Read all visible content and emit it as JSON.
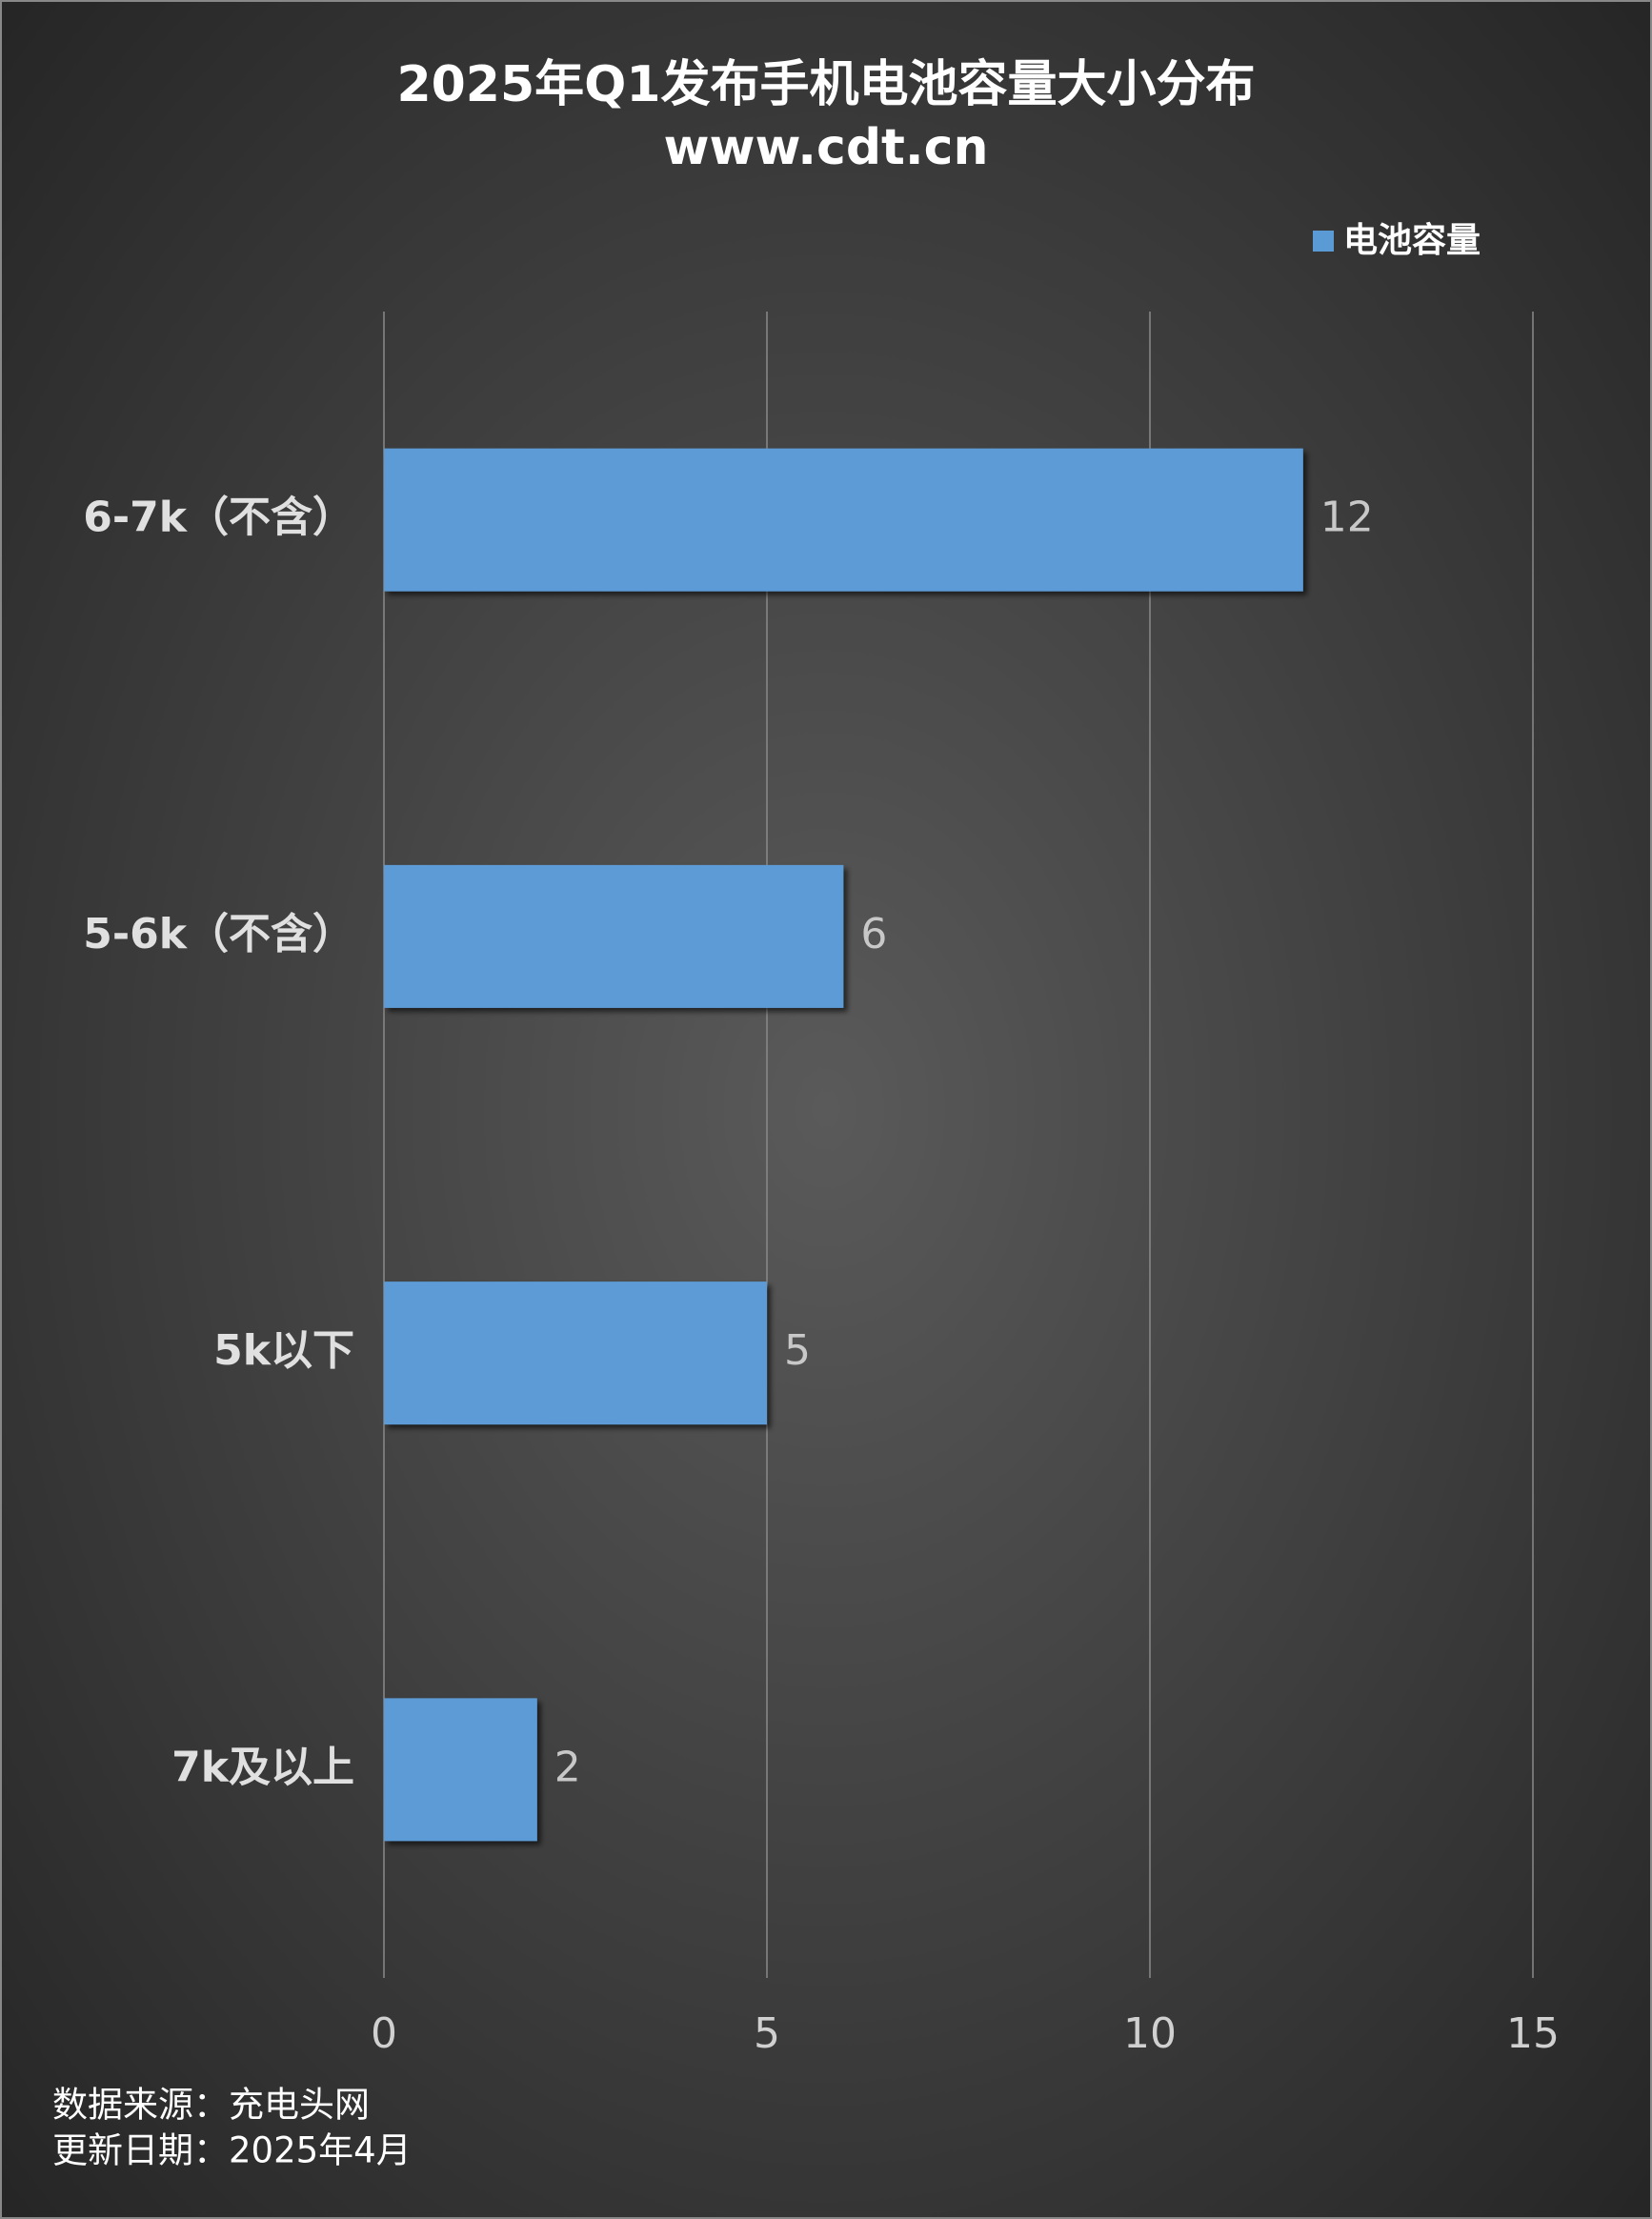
{
  "chart_data": {
    "type": "bar",
    "orientation": "horizontal",
    "title": "2025年Q1发布手机电池容量大小分布",
    "subtitle": "www.cdt.cn",
    "categories": [
      "6-7k（不含）",
      "5-6k（不含）",
      "5k以下",
      "7k及以上"
    ],
    "series": [
      {
        "name": "电池容量",
        "color": "#5b9bd5",
        "values": [
          12,
          6,
          5,
          2
        ]
      }
    ],
    "xlim": [
      0,
      15
    ],
    "xticks": [
      0,
      5,
      10,
      15
    ],
    "grid": true,
    "legend": "top-right",
    "source": "数据来源：充电头网",
    "updated": "更新日期：2025年4月"
  }
}
